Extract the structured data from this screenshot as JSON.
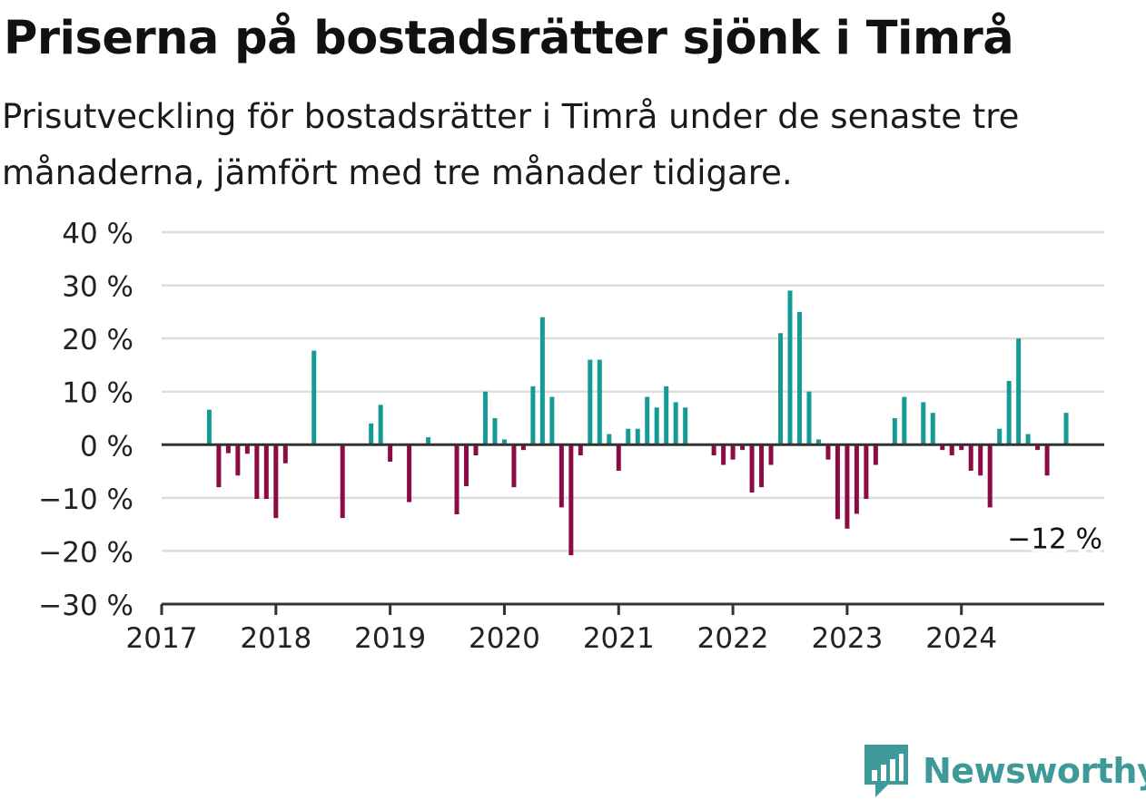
{
  "title": "Priserna på bostadsrätter sjönk i Timrå",
  "subtitle": "Prisutveckling för bostadsrätter i Timrå under de senaste tre månaderna, jämfört med tre månader tidigare.",
  "colors": {
    "positive": "#159b95",
    "negative": "#8c0a45",
    "grid": "#dddddd",
    "axis": "#333333",
    "brand": "#3d9a98"
  },
  "brand": {
    "name": "Newsworthy",
    "icon": "newsworthy-logo-icon"
  },
  "chart_data": {
    "type": "bar",
    "unit": "%",
    "x_start": "2017-01",
    "x_end": "2025-04",
    "ylim": [
      -30,
      40
    ],
    "yticks": [
      40,
      30,
      20,
      10,
      0,
      -10,
      -20,
      -30
    ],
    "ytick_labels": [
      "40 %",
      "30 %",
      "20 %",
      "10 %",
      "0 %",
      "−10 %",
      "−20 %",
      "−30 %"
    ],
    "xtick_labels": [
      "2017",
      "2018",
      "2019",
      "2020",
      "2021",
      "2022",
      "2023",
      "2024"
    ],
    "grid": true,
    "last_label": "−12 %",
    "x": [
      "2017-01",
      "2017-02",
      "2017-03",
      "2017-04",
      "2017-05",
      "2017-06",
      "2017-07",
      "2017-08",
      "2017-09",
      "2017-10",
      "2017-11",
      "2017-12",
      "2018-01",
      "2018-02",
      "2018-03",
      "2018-04",
      "2018-05",
      "2018-06",
      "2018-07",
      "2018-08",
      "2018-09",
      "2018-10",
      "2018-11",
      "2018-12",
      "2019-01",
      "2019-02",
      "2019-03",
      "2019-04",
      "2019-05",
      "2019-06",
      "2019-07",
      "2019-08",
      "2019-09",
      "2019-10",
      "2019-11",
      "2019-12",
      "2020-01",
      "2020-02",
      "2020-03",
      "2020-04",
      "2020-05",
      "2020-06",
      "2020-07",
      "2020-08",
      "2020-09",
      "2020-10",
      "2020-11",
      "2020-12",
      "2021-01",
      "2021-02",
      "2021-03",
      "2021-04",
      "2021-05",
      "2021-06",
      "2021-07",
      "2021-08",
      "2021-09",
      "2021-10",
      "2021-11",
      "2021-12",
      "2022-01",
      "2022-02",
      "2022-03",
      "2022-04",
      "2022-05",
      "2022-06",
      "2022-07",
      "2022-08",
      "2022-09",
      "2022-10",
      "2022-11",
      "2022-12",
      "2023-01",
      "2023-02",
      "2023-03",
      "2023-04",
      "2023-05",
      "2023-06",
      "2023-07",
      "2023-08",
      "2023-09",
      "2023-10",
      "2023-11",
      "2023-12",
      "2024-01",
      "2024-02",
      "2024-03",
      "2024-04",
      "2024-05",
      "2024-06",
      "2024-07",
      "2024-08",
      "2024-09",
      "2024-10",
      "2024-11",
      "2024-12"
    ],
    "values": [
      null,
      null,
      null,
      null,
      null,
      6.6,
      -8,
      -1.6,
      -5.8,
      -1.7,
      -10.2,
      -10.2,
      -13.8,
      -3.5,
      null,
      null,
      17.7,
      null,
      null,
      -13.8,
      null,
      null,
      4,
      7.5,
      -3.2,
      null,
      -10.8,
      null,
      1.4,
      null,
      null,
      -13.1,
      -7.8,
      -2,
      10,
      5,
      1,
      -8,
      -1,
      11,
      24,
      9,
      -11.8,
      -20.8,
      -2,
      16,
      16,
      2,
      -4.9,
      3,
      3,
      9,
      7,
      11,
      8,
      7,
      null,
      null,
      -2,
      -3.8,
      -2.8,
      -1,
      -9,
      -8,
      -3.8,
      21,
      29,
      25,
      10,
      1,
      -2.8,
      -14,
      -15.8,
      -13,
      -10.2,
      -3.8,
      null,
      5,
      9,
      null,
      8,
      6,
      -1,
      -2,
      -1,
      -4.9,
      -5.8,
      -11.8,
      3,
      12,
      20,
      2,
      -1,
      -5.8,
      null,
      6
    ]
  }
}
